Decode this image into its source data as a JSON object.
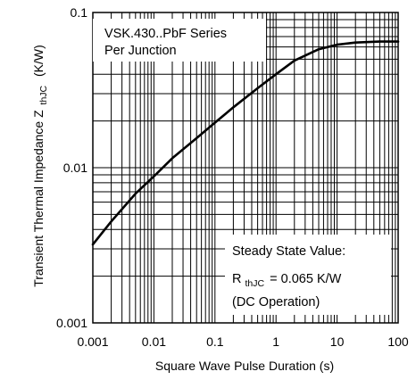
{
  "chart_data": {
    "type": "line",
    "title": "",
    "xlabel": "Square Wave Pulse Duration (s)",
    "ylabel_main": "Transient Thermal Impedance Z",
    "ylabel_sub": "thJC",
    "ylabel_unit": "(K/W)",
    "xscale": "log",
    "yscale": "log",
    "xlim": [
      0.001,
      100
    ],
    "ylim": [
      0.001,
      0.1
    ],
    "x_ticks": [
      "0.001",
      "0.01",
      "0.1",
      "1",
      "10",
      "100"
    ],
    "y_ticks": [
      "0.001",
      "0.01",
      "0.1"
    ],
    "grid": true,
    "series": [
      {
        "x": [
          0.001,
          0.002,
          0.005,
          0.01,
          0.02,
          0.05,
          0.1,
          0.2,
          0.5,
          1,
          2,
          5,
          10,
          20,
          50,
          100
        ],
        "y": [
          0.0032,
          0.0045,
          0.0068,
          0.0088,
          0.0115,
          0.0155,
          0.0195,
          0.0245,
          0.0325,
          0.04,
          0.049,
          0.058,
          0.062,
          0.064,
          0.065,
          0.065
        ]
      }
    ],
    "annotations": {
      "series_box": [
        "VSK.430..PbF Series",
        "Per Junction"
      ],
      "steady_state": {
        "line1": "Steady State Value:",
        "r_symbol": "R",
        "r_sub": "thJC",
        "r_value": "= 0.065  K/W",
        "line3": "(DC Operation)"
      }
    }
  }
}
